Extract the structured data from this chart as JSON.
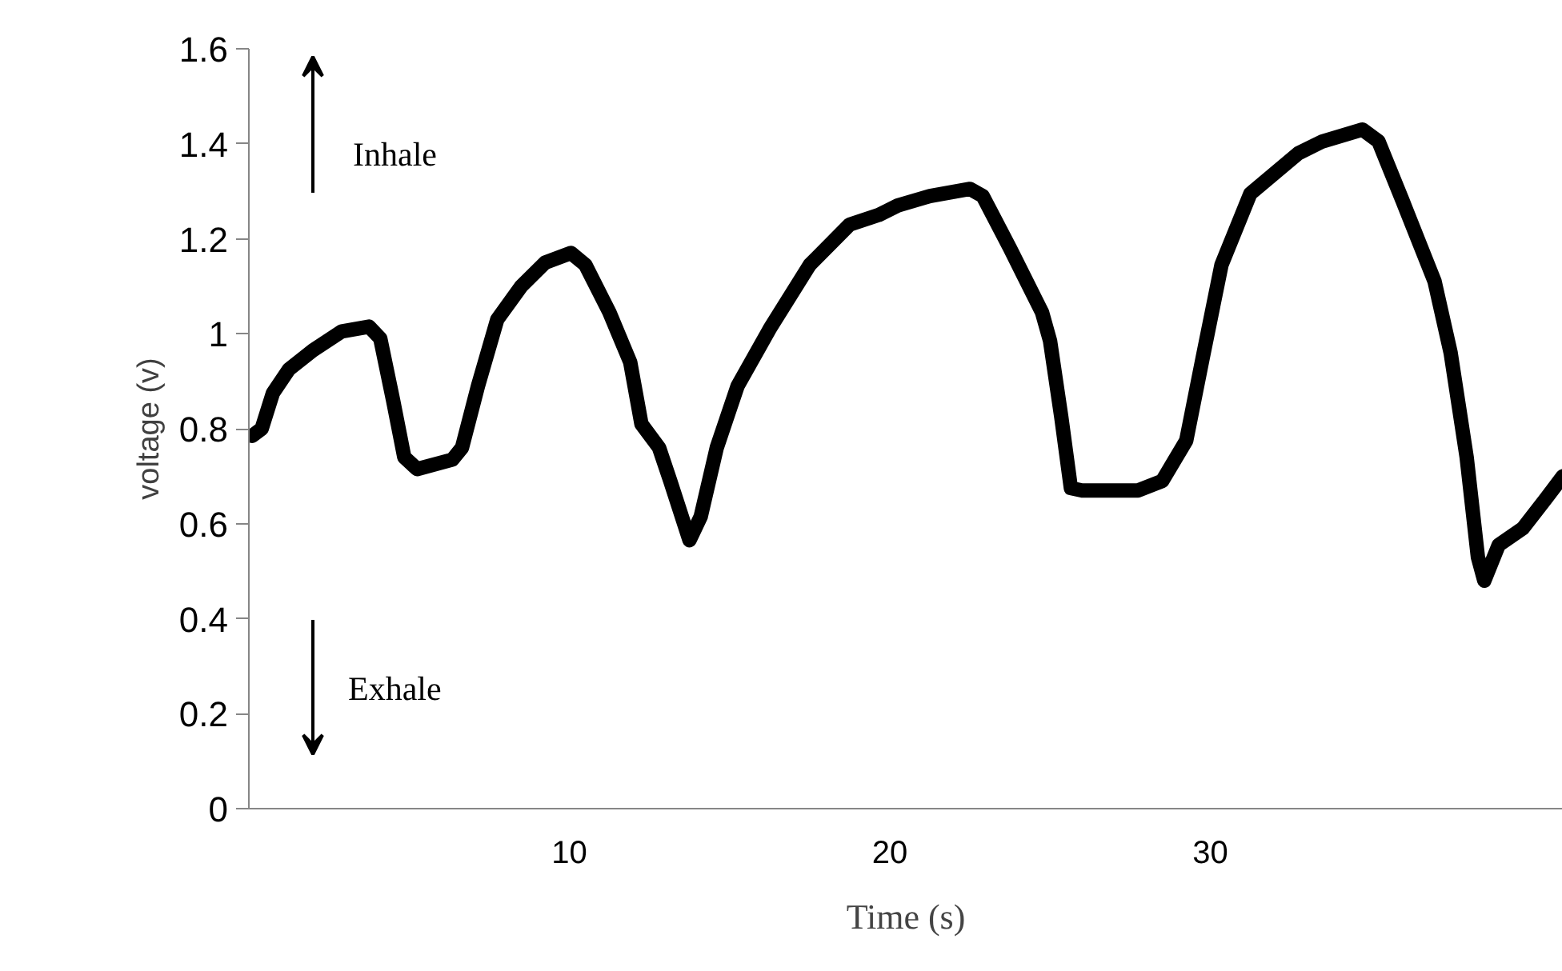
{
  "chart_data": {
    "type": "line",
    "xlabel": "Time (s)",
    "ylabel": "voltage (v)",
    "annotations": [
      "Inhale",
      "Exhale"
    ],
    "xlim": [
      0,
      41
    ],
    "xticks": [
      10,
      20,
      30
    ],
    "ylim": [
      0,
      1.6
    ],
    "yticks": [
      0,
      0.2,
      0.4,
      0.6,
      0.8,
      1,
      1.2,
      1.4,
      1.6
    ],
    "grid": false,
    "marker": "none",
    "line_style": "solid",
    "series": [
      {
        "color": "#000000",
        "x": [
          0.1,
          0.4,
          0.75,
          1.25,
          2,
          2.9,
          3.75,
          4.1,
          4.5,
          4.85,
          5.25,
          6.35,
          6.65,
          7.15,
          7.75,
          8.5,
          9.25,
          10.05,
          10.5,
          11.25,
          11.9,
          12.25,
          12.8,
          13.15,
          13.75,
          14.1,
          14.6,
          15.25,
          16.25,
          17.5,
          18.75,
          19.65,
          20.25,
          21.25,
          22.5,
          22.9,
          23.75,
          24.75,
          25,
          25.35,
          25.65,
          26,
          27.75,
          28.5,
          29.25,
          29.75,
          30.35,
          31.25,
          32.75,
          33.5,
          34.75,
          35.25,
          36,
          37,
          37.5,
          38,
          38.35,
          38.55,
          39,
          39.75,
          40.5,
          41
        ],
        "values": [
          0.785,
          0.8,
          0.875,
          0.925,
          0.965,
          1.005,
          1.015,
          0.99,
          0.86,
          0.74,
          0.715,
          0.735,
          0.76,
          0.89,
          1.03,
          1.1,
          1.15,
          1.17,
          1.145,
          1.045,
          0.94,
          0.81,
          0.76,
          0.69,
          0.565,
          0.615,
          0.76,
          0.89,
          1.01,
          1.145,
          1.23,
          1.25,
          1.27,
          1.29,
          1.305,
          1.29,
          1.18,
          1.045,
          0.985,
          0.825,
          0.675,
          0.67,
          0.67,
          0.69,
          0.775,
          0.945,
          1.145,
          1.295,
          1.38,
          1.405,
          1.43,
          1.405,
          1.28,
          1.11,
          0.96,
          0.74,
          0.53,
          0.48,
          0.555,
          0.59,
          0.655,
          0.7
        ]
      }
    ]
  }
}
